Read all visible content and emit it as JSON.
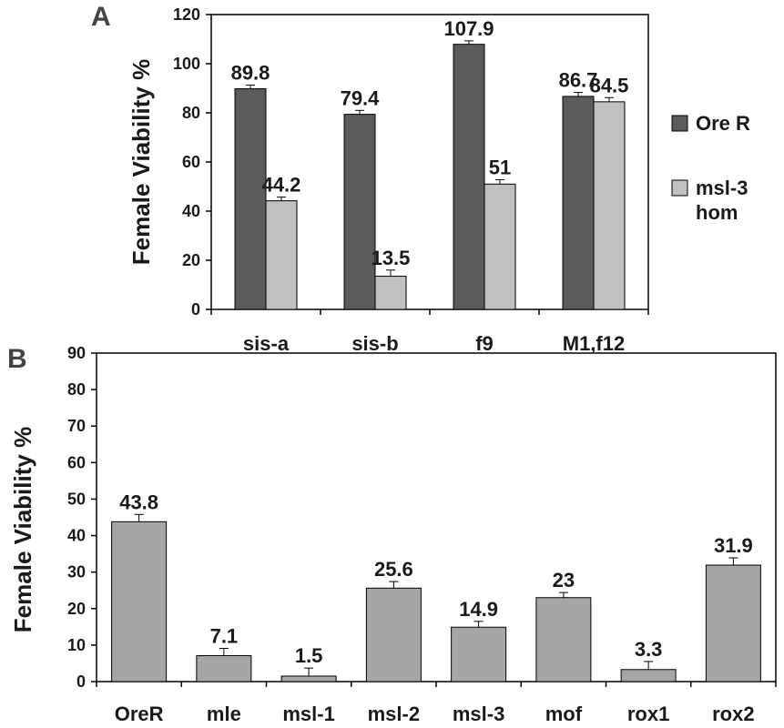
{
  "chart_data": [
    {
      "panel_label": "A",
      "type": "bar",
      "ylabel": "Female Viability %",
      "xlabel": "",
      "ylim": [
        0,
        120
      ],
      "yticks": [
        0,
        20,
        40,
        60,
        80,
        100,
        120
      ],
      "categories": [
        "sis-a",
        "sis-b",
        "f9",
        "M1,f12"
      ],
      "series": [
        {
          "name": "Ore R",
          "color": "#5b5b5b",
          "values": [
            89.8,
            79.4,
            107.9,
            86.7
          ],
          "errors": [
            1.5,
            1.6,
            1.4,
            1.6
          ],
          "labels": [
            "89.8",
            "79.4",
            "107.9",
            "86.7"
          ]
        },
        {
          "name": "msl-3 hom",
          "color": "#c0c0c0",
          "values": [
            44.2,
            13.5,
            51,
            84.5
          ],
          "errors": [
            1.5,
            2.5,
            1.8,
            1.7
          ],
          "labels": [
            "44.2",
            "13.5",
            "51",
            "84.5"
          ]
        }
      ],
      "legend": {
        "position": "right",
        "entries": [
          "Ore R",
          "msl-3 hom"
        ]
      },
      "grid": false
    },
    {
      "panel_label": "B",
      "type": "bar",
      "ylabel": "Female Viability %",
      "xlabel": "",
      "ylim": [
        0,
        90
      ],
      "yticks": [
        0,
        10,
        20,
        30,
        40,
        50,
        60,
        70,
        80,
        90
      ],
      "categories": [
        "OreR",
        "mle",
        "msl-1",
        "msl-2",
        "msl-3",
        "mof",
        "rox1",
        "rox2"
      ],
      "series": [
        {
          "name": "",
          "color": "#a6a6a6",
          "values": [
            43.8,
            7.1,
            1.5,
            25.6,
            14.9,
            23,
            3.3,
            31.9
          ],
          "errors": [
            2.0,
            2.0,
            2.2,
            1.8,
            1.6,
            1.4,
            2.2,
            2.0
          ],
          "labels": [
            "43.8",
            "7.1",
            "1.5",
            "25.6",
            "14.9",
            "23",
            "3.3",
            "31.9"
          ]
        }
      ],
      "grid": false
    }
  ]
}
